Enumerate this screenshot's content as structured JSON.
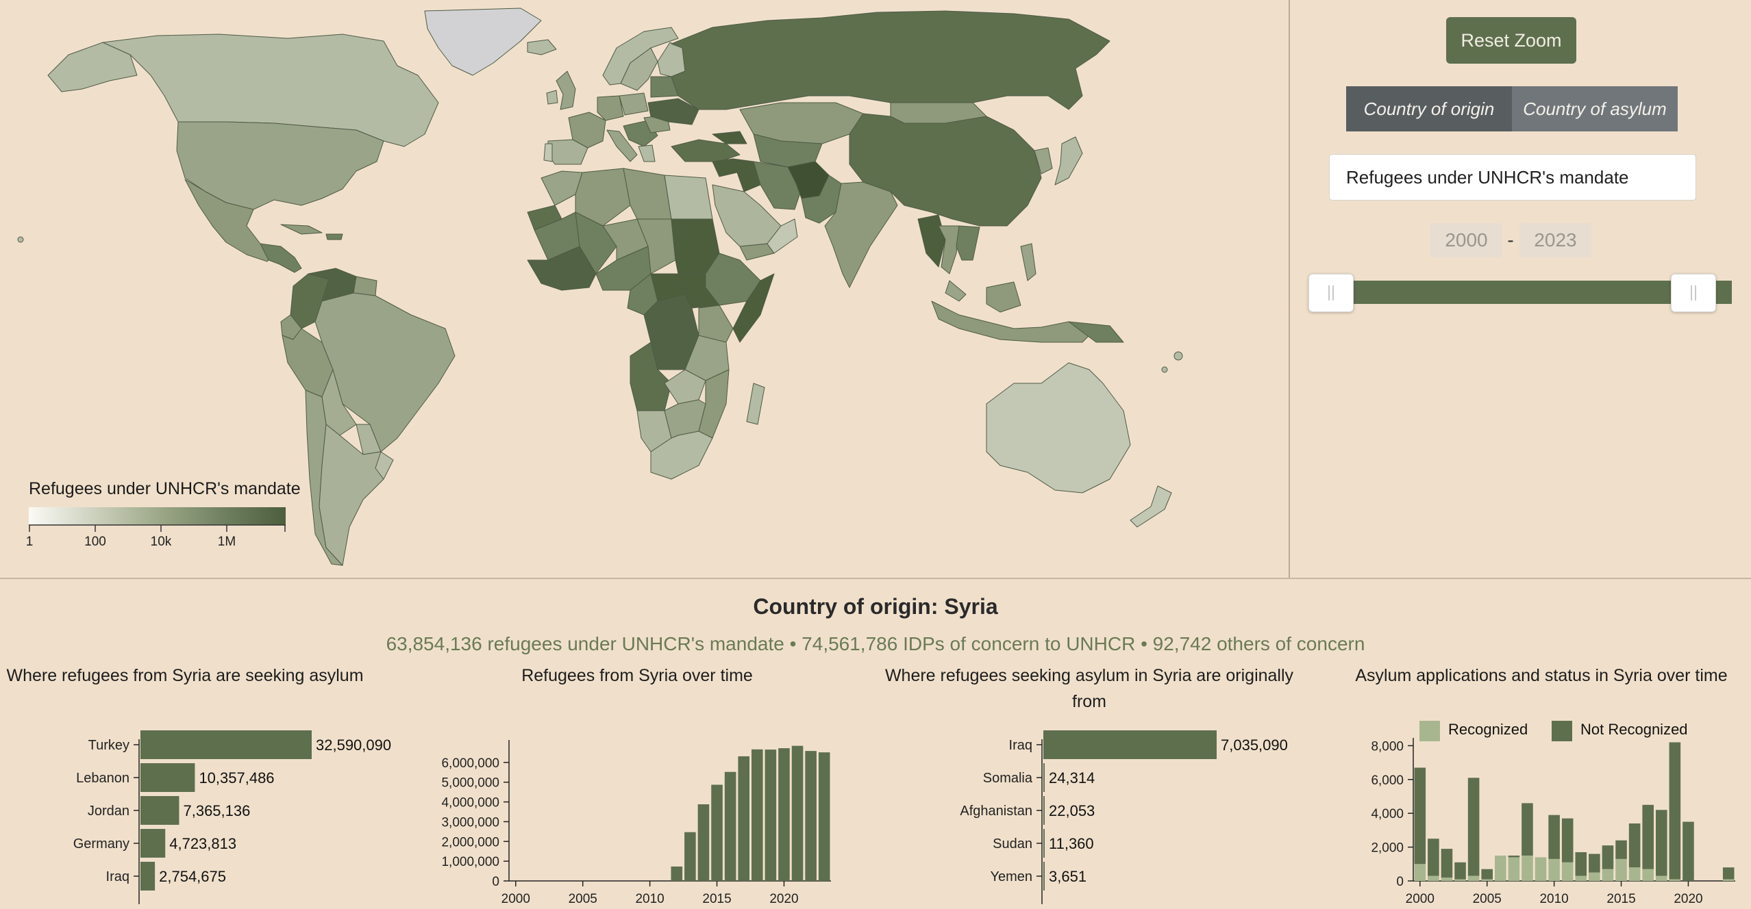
{
  "map": {
    "legend_title": "Refugees under UNHCR's mandate",
    "legend_ticks": [
      "1",
      "100",
      "10k",
      "1M"
    ],
    "colors": {
      "ocean": "#f0e0cb",
      "land_light": "#c3c8b5",
      "land_mid": "#8e9a7b",
      "land_dark": "#5e6f4e",
      "land_darkest": "#4c5e3c",
      "no_data": "#d2d2d4",
      "border": "#4f5a45"
    }
  },
  "controls": {
    "reset_zoom": "Reset Zoom",
    "toggle_origin": "Country of origin",
    "toggle_asylum": "Country of asylum",
    "indicator": "Refugees under UNHCR's mandate",
    "year_start": "2000",
    "year_end": "2023",
    "year_separator": "-",
    "year_range": [
      2000,
      2023
    ],
    "selected_range": [
      2000,
      2023
    ]
  },
  "detail": {
    "title": "Country of origin: Syria",
    "subtitle": "63,854,136 refugees under UNHCR's mandate • 74,561,786 IDPs of concern to UNHCR • 92,742 others of concern"
  },
  "chart_data": [
    {
      "type": "bar",
      "orientation": "horizontal",
      "title": "Where refugees from Syria are seeking asylum",
      "categories": [
        "Turkey",
        "Lebanon",
        "Jordan",
        "Germany",
        "Iraq"
      ],
      "values": [
        32590090,
        10357486,
        7365136,
        4723813,
        2754675
      ],
      "value_labels": [
        "32,590,090",
        "10,357,486",
        "7,365,136",
        "4,723,813",
        "2,754,675"
      ],
      "color": "#5e6f4e"
    },
    {
      "type": "bar",
      "title": "Refugees from Syria over time",
      "x": [
        2000,
        2001,
        2002,
        2003,
        2004,
        2005,
        2006,
        2007,
        2008,
        2009,
        2010,
        2011,
        2012,
        2013,
        2014,
        2015,
        2016,
        2017,
        2018,
        2019,
        2020,
        2021,
        2022,
        2023
      ],
      "values": [
        0,
        0,
        0,
        0,
        0,
        0,
        0,
        0,
        0,
        0,
        0,
        0,
        730000,
        2470000,
        3880000,
        4870000,
        5520000,
        6310000,
        6660000,
        6650000,
        6720000,
        6840000,
        6580000,
        6510000
      ],
      "xticks": [
        "2000",
        "2005",
        "2010",
        "2015",
        "2020"
      ],
      "yticks": [
        "0",
        "1,000,000",
        "2,000,000",
        "3,000,000",
        "4,000,000",
        "5,000,000",
        "6,000,000"
      ],
      "ylim": [
        0,
        7000000
      ],
      "color": "#5e6f4e"
    },
    {
      "type": "bar",
      "orientation": "horizontal",
      "title": "Where refugees seeking asylum in Syria are originally from",
      "categories": [
        "Iraq",
        "Somalia",
        "Afghanistan",
        "Sudan",
        "Yemen"
      ],
      "values": [
        7035090,
        24314,
        22053,
        11360,
        3651
      ],
      "value_labels": [
        "7,035,090",
        "24,314",
        "22,053",
        "11,360",
        "3,651"
      ],
      "color": "#5e6f4e"
    },
    {
      "type": "bar",
      "stacked": true,
      "title": "Asylum applications and status in Syria over time",
      "x": [
        2000,
        2001,
        2002,
        2003,
        2004,
        2005,
        2006,
        2007,
        2008,
        2009,
        2010,
        2011,
        2012,
        2013,
        2014,
        2015,
        2016,
        2017,
        2018,
        2019,
        2020,
        2021,
        2022,
        2023
      ],
      "series": [
        {
          "name": "Recognized",
          "color": "#a8b68f",
          "values": [
            1000,
            300,
            200,
            100,
            300,
            100,
            1500,
            1400,
            1500,
            1400,
            1300,
            1100,
            300,
            500,
            700,
            1300,
            800,
            700,
            300,
            100,
            0,
            0,
            0,
            100
          ]
        },
        {
          "name": "Not Recognized",
          "color": "#5e6f4e",
          "values": [
            5700,
            2200,
            1700,
            1000,
            5800,
            600,
            0,
            100,
            3100,
            0,
            2600,
            2600,
            1400,
            1100,
            1400,
            1100,
            2600,
            3800,
            3900,
            8100,
            3500,
            0,
            0,
            700
          ]
        }
      ],
      "xticks": [
        "2000",
        "2005",
        "2010",
        "2015",
        "2020"
      ],
      "yticks": [
        "0",
        "2,000",
        "4,000",
        "6,000",
        "8,000"
      ],
      "ylim": [
        0,
        8300
      ]
    }
  ]
}
